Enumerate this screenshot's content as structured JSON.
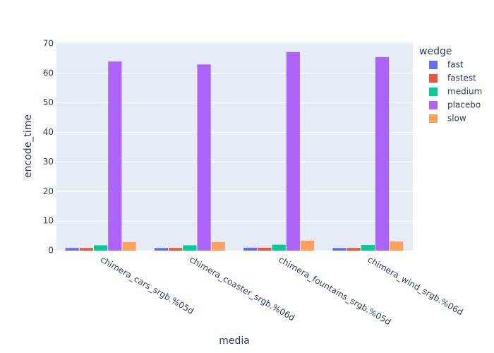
{
  "chart_data": {
    "type": "bar",
    "xlabel": "media",
    "ylabel": "encode_time",
    "legend_title": "wedge",
    "categories": [
      "chimera_cars_srgb.%05d",
      "chimera_coaster_srgb.%06d",
      "chimera_fountains_srgb.%05d",
      "chimera_wind_srgb.%06d"
    ],
    "series": [
      {
        "name": "fast",
        "color": "#636efa",
        "values": [
          0.9,
          0.9,
          1.0,
          0.9
        ]
      },
      {
        "name": "fastest",
        "color": "#ef553b",
        "values": [
          0.9,
          0.9,
          1.0,
          0.9
        ]
      },
      {
        "name": "medium",
        "color": "#00cc96",
        "values": [
          1.8,
          1.8,
          2.0,
          1.9
        ]
      },
      {
        "name": "placebo",
        "color": "#ab63fa",
        "values": [
          64,
          63,
          67.2,
          65.5
        ]
      },
      {
        "name": "slow",
        "color": "#ffa15a",
        "values": [
          2.9,
          2.9,
          3.4,
          3.1
        ]
      }
    ],
    "ylim": [
      0,
      70
    ],
    "yticks": [
      0,
      10,
      20,
      30,
      40,
      50,
      60,
      70
    ],
    "grid": true,
    "legend": "right"
  }
}
